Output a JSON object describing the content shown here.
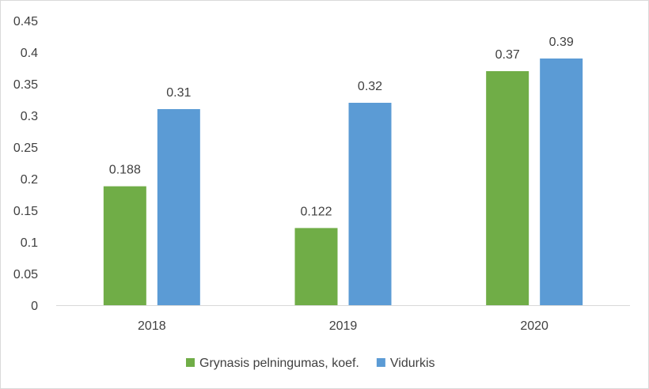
{
  "chart_data": {
    "type": "bar",
    "categories": [
      "2018",
      "2019",
      "2020"
    ],
    "series": [
      {
        "name": "Grynasis pelningumas, koef.",
        "values": [
          0.188,
          0.122,
          0.37
        ],
        "labels": [
          "0.188",
          "0.122",
          "0.37"
        ],
        "color": "#70ad47"
      },
      {
        "name": "Vidurkis",
        "values": [
          0.31,
          0.32,
          0.39
        ],
        "labels": [
          "0.31",
          "0.32",
          "0.39"
        ],
        "color": "#5b9bd5"
      }
    ],
    "y_ticks": [
      "0",
      "0.05",
      "0.1",
      "0.15",
      "0.2",
      "0.25",
      "0.3",
      "0.35",
      "0.4",
      "0.45"
    ],
    "ylim": [
      0,
      0.45
    ],
    "grid": false,
    "legend_position": "bottom",
    "axis_color": "#d9d9d9"
  }
}
